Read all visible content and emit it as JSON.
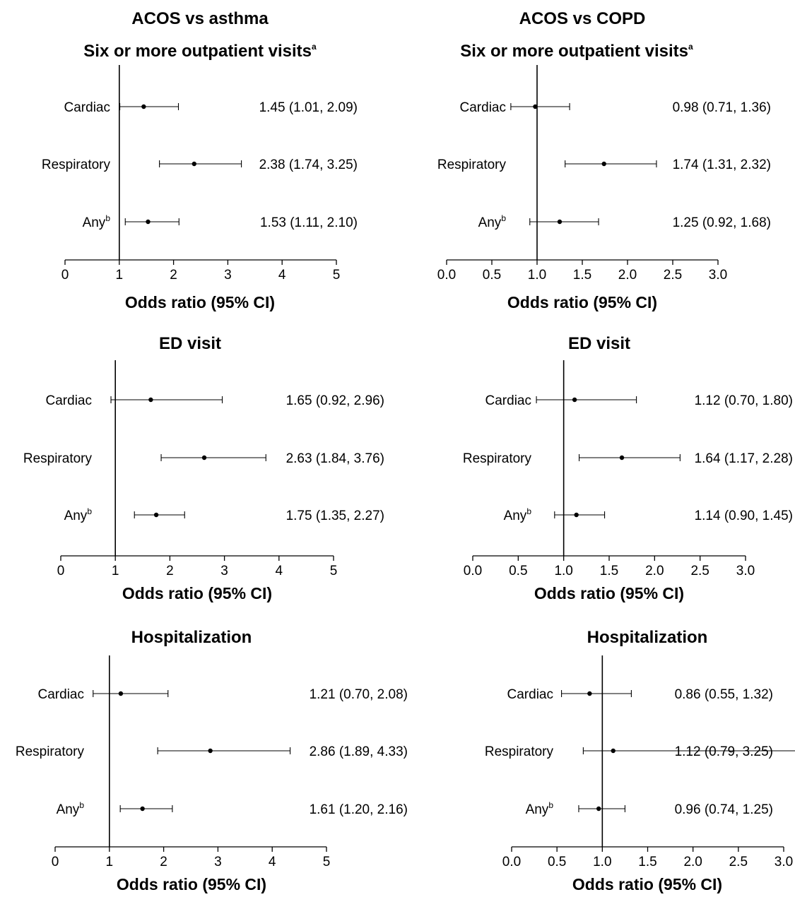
{
  "column_titles": [
    "ACOS vs asthma",
    "ACOS vs COPD"
  ],
  "chart_data": [
    {
      "type": "forest",
      "column_title": "ACOS vs asthma",
      "title": "Six or more outpatient visits",
      "title_superscript": "a",
      "xlabel": "Odds ratio (95% CI)",
      "xlim": [
        0,
        5
      ],
      "xticks": [
        "0",
        "1",
        "2",
        "3",
        "4",
        "5"
      ],
      "reference_line": 1,
      "rows": [
        {
          "label": "Cardiac",
          "sup": "",
          "or": 1.45,
          "lo": 1.01,
          "hi": 2.09,
          "text": "1.45 (1.01, 2.09)"
        },
        {
          "label": "Respiratory",
          "sup": "",
          "or": 2.38,
          "lo": 1.74,
          "hi": 3.25,
          "text": "2.38 (1.74, 3.25)"
        },
        {
          "label": "Any",
          "sup": "b",
          "or": 1.53,
          "lo": 1.11,
          "hi": 2.1,
          "text": "1.53 (1.11, 2.10)"
        }
      ]
    },
    {
      "type": "forest",
      "column_title": "ACOS vs COPD",
      "title": "Six or more outpatient visits",
      "title_superscript": "a",
      "xlabel": "Odds ratio (95% CI)",
      "xlim": [
        0,
        3
      ],
      "xticks": [
        "0.0",
        "0.5",
        "1.0",
        "1.5",
        "2.0",
        "2.5",
        "3.0"
      ],
      "reference_line": 1,
      "rows": [
        {
          "label": "Cardiac",
          "sup": "",
          "or": 0.98,
          "lo": 0.71,
          "hi": 1.36,
          "text": "0.98 (0.71, 1.36)"
        },
        {
          "label": "Respiratory",
          "sup": "",
          "or": 1.74,
          "lo": 1.31,
          "hi": 2.32,
          "text": "1.74 (1.31, 2.32)"
        },
        {
          "label": "Any",
          "sup": "b",
          "or": 1.25,
          "lo": 0.92,
          "hi": 1.68,
          "text": "1.25 (0.92, 1.68)"
        }
      ]
    },
    {
      "type": "forest",
      "column_title": "ACOS vs asthma",
      "title": "ED visit",
      "title_superscript": "",
      "xlabel": "Odds ratio (95% CI)",
      "xlim": [
        0,
        5
      ],
      "xticks": [
        "0",
        "1",
        "2",
        "3",
        "4",
        "5"
      ],
      "reference_line": 1,
      "rows": [
        {
          "label": "Cardiac",
          "sup": "",
          "or": 1.65,
          "lo": 0.92,
          "hi": 2.96,
          "text": "1.65 (0.92, 2.96)"
        },
        {
          "label": "Respiratory",
          "sup": "",
          "or": 2.63,
          "lo": 1.84,
          "hi": 3.76,
          "text": "2.63 (1.84, 3.76)"
        },
        {
          "label": "Any",
          "sup": "b",
          "or": 1.75,
          "lo": 1.35,
          "hi": 2.27,
          "text": "1.75 (1.35, 2.27)"
        }
      ]
    },
    {
      "type": "forest",
      "column_title": "ACOS vs COPD",
      "title": "ED visit",
      "title_superscript": "",
      "xlabel": "Odds ratio (95% CI)",
      "xlim": [
        0,
        3
      ],
      "xticks": [
        "0.0",
        "0.5",
        "1.0",
        "1.5",
        "2.0",
        "2.5",
        "3.0"
      ],
      "reference_line": 1,
      "rows": [
        {
          "label": "Cardiac",
          "sup": "",
          "or": 1.12,
          "lo": 0.7,
          "hi": 1.8,
          "text": "1.12 (0.70, 1.80)"
        },
        {
          "label": "Respiratory",
          "sup": "",
          "or": 1.64,
          "lo": 1.17,
          "hi": 2.28,
          "text": "1.64 (1.17, 2.28)"
        },
        {
          "label": "Any",
          "sup": "b",
          "or": 1.14,
          "lo": 0.9,
          "hi": 1.45,
          "text": "1.14 (0.90, 1.45)"
        }
      ]
    },
    {
      "type": "forest",
      "column_title": "ACOS vs asthma",
      "title": "Hospitalization",
      "title_superscript": "",
      "xlabel": "Odds ratio (95% CI)",
      "xlim": [
        0,
        5
      ],
      "xticks": [
        "0",
        "1",
        "2",
        "3",
        "4",
        "5"
      ],
      "reference_line": 1,
      "rows": [
        {
          "label": "Cardiac",
          "sup": "",
          "or": 1.21,
          "lo": 0.7,
          "hi": 2.08,
          "text": "1.21 (0.70, 2.08)"
        },
        {
          "label": "Respiratory",
          "sup": "",
          "or": 2.86,
          "lo": 1.89,
          "hi": 4.33,
          "text": "2.86 (1.89, 4.33)"
        },
        {
          "label": "Any",
          "sup": "b",
          "or": 1.61,
          "lo": 1.2,
          "hi": 2.16,
          "text": "1.61 (1.20, 2.16)"
        }
      ]
    },
    {
      "type": "forest",
      "column_title": "ACOS vs COPD",
      "title": "Hospitalization",
      "title_superscript": "",
      "xlabel": "Odds ratio (95% CI)",
      "xlim": [
        0,
        3
      ],
      "xticks": [
        "0.0",
        "0.5",
        "1.0",
        "1.5",
        "2.0",
        "2.5",
        "3.0"
      ],
      "reference_line": 1,
      "rows": [
        {
          "label": "Cardiac",
          "sup": "",
          "or": 0.86,
          "lo": 0.55,
          "hi": 1.32,
          "text": "0.86 (0.55, 1.32)"
        },
        {
          "label": "Respiratory",
          "sup": "",
          "or": 1.12,
          "lo": 0.79,
          "hi": 3.25,
          "text": "1.12 (0.79, 3.25)"
        },
        {
          "label": "Any",
          "sup": "b",
          "or": 0.96,
          "lo": 0.74,
          "hi": 1.25,
          "text": "0.96 (0.74, 1.25)"
        }
      ]
    }
  ]
}
